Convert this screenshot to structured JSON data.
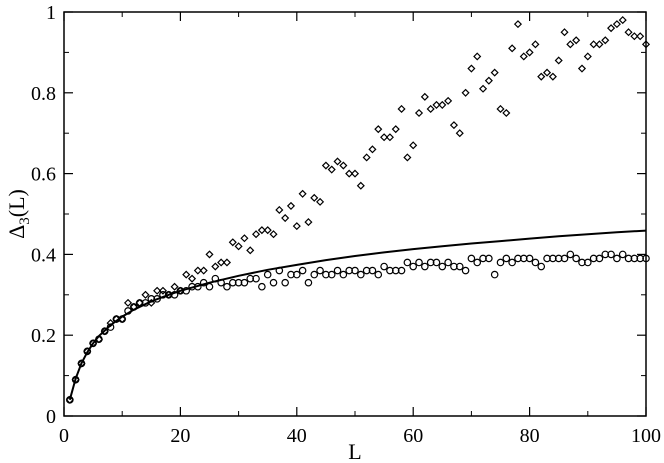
{
  "chart_data": {
    "type": "scatter",
    "title": "",
    "xlabel": "L",
    "ylabel_main": "Δ",
    "ylabel_sub": "3",
    "ylabel_tail": "(L)",
    "xlim": [
      0,
      100
    ],
    "ylim": [
      0,
      1
    ],
    "xticks": [
      0,
      20,
      40,
      60,
      80,
      100
    ],
    "yticks": [
      0,
      0.2,
      0.4,
      0.6,
      0.8,
      1
    ],
    "xtick_labels": [
      "0",
      "20",
      "40",
      "60",
      "80",
      "100"
    ],
    "ytick_labels": [
      "0",
      "0.2",
      "0.4",
      "0.6",
      "0.8",
      "1"
    ],
    "grid": false,
    "legend": "none",
    "series": [
      {
        "marker": "diamond",
        "x": [
          1,
          2,
          3,
          4,
          5,
          6,
          7,
          8,
          9,
          10,
          11,
          12,
          13,
          14,
          15,
          16,
          17,
          18,
          19,
          20,
          21,
          22,
          23,
          24,
          25,
          26,
          27,
          28,
          29,
          30,
          31,
          32,
          33,
          34,
          35,
          36,
          37,
          38,
          39,
          40,
          41,
          42,
          43,
          44,
          45,
          46,
          47,
          48,
          49,
          50,
          51,
          52,
          53,
          54,
          55,
          56,
          57,
          58,
          59,
          60,
          61,
          62,
          63,
          64,
          65,
          66,
          67,
          68,
          69,
          70,
          71,
          72,
          73,
          74,
          75,
          76,
          77,
          78,
          79,
          80,
          81,
          82,
          83,
          84,
          85,
          86,
          87,
          88,
          89,
          90,
          91,
          92,
          93,
          94,
          95,
          96,
          97,
          98,
          99,
          100
        ],
        "y": [
          0.04,
          0.09,
          0.13,
          0.16,
          0.18,
          0.19,
          0.21,
          0.23,
          0.24,
          0.24,
          0.28,
          0.27,
          0.28,
          0.3,
          0.28,
          0.31,
          0.31,
          0.3,
          0.32,
          0.31,
          0.35,
          0.34,
          0.36,
          0.36,
          0.4,
          0.37,
          0.38,
          0.38,
          0.43,
          0.42,
          0.44,
          0.41,
          0.45,
          0.46,
          0.46,
          0.45,
          0.51,
          0.49,
          0.52,
          0.47,
          0.55,
          0.48,
          0.54,
          0.53,
          0.62,
          0.61,
          0.63,
          0.62,
          0.6,
          0.6,
          0.57,
          0.64,
          0.66,
          0.71,
          0.69,
          0.69,
          0.71,
          0.76,
          0.64,
          0.67,
          0.75,
          0.79,
          0.76,
          0.77,
          0.77,
          0.78,
          0.72,
          0.7,
          0.8,
          0.86,
          0.89,
          0.81,
          0.83,
          0.85,
          0.76,
          0.75,
          0.91,
          0.97,
          0.89,
          0.9,
          0.92,
          0.84,
          0.85,
          0.84,
          0.88,
          0.95,
          0.92,
          0.93,
          0.86,
          0.89,
          0.92,
          0.92,
          0.93,
          0.96,
          0.97,
          0.98,
          0.95,
          0.94,
          0.94,
          0.92
        ]
      },
      {
        "marker": "circle",
        "x": [
          1,
          2,
          3,
          4,
          5,
          6,
          7,
          8,
          9,
          10,
          11,
          12,
          13,
          14,
          15,
          16,
          17,
          18,
          19,
          20,
          21,
          22,
          23,
          24,
          25,
          26,
          27,
          28,
          29,
          30,
          31,
          32,
          33,
          34,
          35,
          36,
          37,
          38,
          39,
          40,
          41,
          42,
          43,
          44,
          45,
          46,
          47,
          48,
          49,
          50,
          51,
          52,
          53,
          54,
          55,
          56,
          57,
          58,
          59,
          60,
          61,
          62,
          63,
          64,
          65,
          66,
          67,
          68,
          69,
          70,
          71,
          72,
          73,
          74,
          75,
          76,
          77,
          78,
          79,
          80,
          81,
          82,
          83,
          84,
          85,
          86,
          87,
          88,
          89,
          90,
          91,
          92,
          93,
          94,
          95,
          96,
          97,
          98,
          99,
          100
        ],
        "y": [
          0.04,
          0.09,
          0.13,
          0.16,
          0.18,
          0.19,
          0.21,
          0.22,
          0.24,
          0.24,
          0.26,
          0.27,
          0.28,
          0.28,
          0.29,
          0.29,
          0.3,
          0.3,
          0.3,
          0.31,
          0.31,
          0.32,
          0.32,
          0.33,
          0.32,
          0.34,
          0.33,
          0.32,
          0.33,
          0.33,
          0.33,
          0.34,
          0.34,
          0.32,
          0.35,
          0.33,
          0.36,
          0.33,
          0.35,
          0.35,
          0.36,
          0.33,
          0.35,
          0.36,
          0.35,
          0.35,
          0.36,
          0.35,
          0.36,
          0.36,
          0.35,
          0.36,
          0.36,
          0.35,
          0.37,
          0.36,
          0.36,
          0.36,
          0.38,
          0.37,
          0.38,
          0.37,
          0.38,
          0.38,
          0.37,
          0.38,
          0.37,
          0.37,
          0.36,
          0.39,
          0.38,
          0.39,
          0.39,
          0.35,
          0.38,
          0.39,
          0.38,
          0.39,
          0.39,
          0.39,
          0.38,
          0.37,
          0.39,
          0.39,
          0.39,
          0.39,
          0.4,
          0.39,
          0.38,
          0.38,
          0.39,
          0.39,
          0.4,
          0.4,
          0.39,
          0.4,
          0.39,
          0.39,
          0.39,
          0.39
        ]
      },
      {
        "marker": "line",
        "x": [
          1,
          2,
          3,
          4,
          5,
          6,
          8,
          10,
          12,
          15,
          18,
          20,
          25,
          30,
          35,
          40,
          45,
          50,
          55,
          60,
          65,
          70,
          75,
          80,
          85,
          90,
          95,
          100
        ],
        "y": [
          0.04,
          0.092,
          0.131,
          0.158,
          0.18,
          0.198,
          0.225,
          0.246,
          0.263,
          0.284,
          0.3,
          0.31,
          0.33,
          0.347,
          0.362,
          0.374,
          0.386,
          0.396,
          0.405,
          0.413,
          0.42,
          0.427,
          0.433,
          0.439,
          0.445,
          0.45,
          0.455,
          0.459
        ]
      }
    ]
  }
}
